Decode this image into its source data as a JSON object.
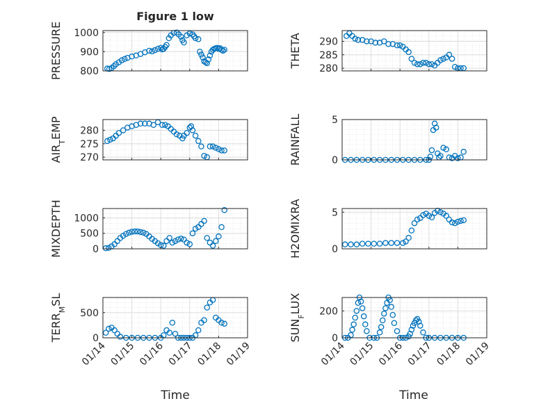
{
  "figure": {
    "title": "Figure 1 low",
    "xlabel": "Time",
    "x_ticks": [
      "01/14",
      "01/15",
      "01/16",
      "01/17",
      "01/18",
      "01/19"
    ],
    "marker_color": "#0072BD"
  },
  "chart_data": [
    {
      "type": "scatter",
      "ylabel": "PRESSURE",
      "ylim": [
        800,
        1010
      ],
      "yticks": [
        800,
        900,
        1000
      ],
      "grid": true,
      "x": [
        0.15,
        0.22,
        0.3,
        0.38,
        0.45,
        0.55,
        0.65,
        0.75,
        0.85,
        1.0,
        1.15,
        1.3,
        1.45,
        1.6,
        1.7,
        1.8,
        1.9,
        2.0,
        2.05,
        2.1,
        2.15,
        2.2,
        2.28,
        2.35,
        2.45,
        2.55,
        2.62,
        2.7,
        2.75,
        2.8,
        2.9,
        3.0,
        3.1,
        3.15,
        3.2,
        3.3,
        3.35,
        3.4,
        3.45,
        3.5,
        3.55,
        3.6,
        3.65,
        3.7,
        3.75,
        3.8,
        3.85,
        3.9,
        3.95,
        4.0,
        4.05,
        4.1,
        4.15,
        4.2
      ],
      "y": [
        812,
        810,
        815,
        825,
        835,
        845,
        855,
        862,
        868,
        875,
        880,
        888,
        897,
        905,
        902,
        908,
        915,
        920,
        912,
        915,
        925,
        935,
        970,
        985,
        998,
        1000,
        990,
        978,
        960,
        948,
        985,
        995,
        990,
        980,
        970,
        965,
        900,
        885,
        870,
        850,
        845,
        840,
        860,
        880,
        900,
        910,
        915,
        918,
        920,
        915,
        918,
        910,
        905,
        910
      ]
    },
    {
      "type": "scatter",
      "ylabel": "THETA",
      "ylim": [
        279,
        294
      ],
      "yticks": [
        280,
        285,
        290
      ],
      "grid": true,
      "x": [
        0.15,
        0.25,
        0.35,
        0.45,
        0.55,
        0.7,
        0.85,
        1.0,
        1.15,
        1.3,
        1.45,
        1.6,
        1.75,
        1.9,
        2.0,
        2.1,
        2.2,
        2.3,
        2.4,
        2.5,
        2.6,
        2.7,
        2.8,
        2.9,
        3.0,
        3.1,
        3.2,
        3.3,
        3.4,
        3.5,
        3.6,
        3.7,
        3.8,
        3.9,
        4.0,
        4.1,
        4.2
      ],
      "y": [
        292,
        293,
        292,
        291,
        290.5,
        290.5,
        290,
        290,
        289.5,
        289.5,
        290,
        289,
        289,
        288.5,
        288.5,
        288,
        287,
        286,
        283.5,
        282,
        281.5,
        281.5,
        282,
        282,
        281.5,
        281.5,
        281,
        282,
        283,
        283.5,
        284,
        285,
        283.5,
        280.5,
        280,
        280,
        280
      ]
    },
    {
      "type": "scatter",
      "ylabel": "AIR_T EMP",
      "ylim": [
        269,
        284
      ],
      "yticks": [
        270,
        275,
        280
      ],
      "grid": true,
      "x": [
        0.15,
        0.25,
        0.35,
        0.45,
        0.55,
        0.7,
        0.85,
        1.0,
        1.15,
        1.3,
        1.45,
        1.6,
        1.75,
        1.9,
        2.05,
        2.15,
        2.25,
        2.35,
        2.45,
        2.55,
        2.65,
        2.75,
        2.8,
        2.9,
        3.0,
        3.05,
        3.1,
        3.2,
        3.3,
        3.4,
        3.5,
        3.6,
        3.7,
        3.8,
        3.9,
        4.0,
        4.1,
        4.2
      ],
      "y": [
        276,
        276.5,
        277,
        278,
        279,
        280,
        281,
        281.5,
        282,
        282.5,
        282.5,
        282.5,
        282,
        283,
        282,
        282,
        281.5,
        280.5,
        279.5,
        278.5,
        278,
        277,
        278,
        279,
        281,
        281.5,
        280,
        278,
        276,
        274,
        270.5,
        270,
        274,
        274,
        273.5,
        273,
        272.5,
        272.5
      ]
    },
    {
      "type": "scatter",
      "ylabel": "RAINFALL",
      "ylim": [
        0,
        5
      ],
      "yticks": [
        0,
        5
      ],
      "grid": true,
      "x": [
        0.1,
        0.3,
        0.5,
        0.7,
        0.9,
        1.1,
        1.3,
        1.5,
        1.7,
        1.9,
        2.1,
        2.3,
        2.5,
        2.7,
        2.9,
        3.0,
        3.05,
        3.1,
        3.15,
        3.2,
        3.25,
        3.3,
        3.35,
        3.4,
        3.5,
        3.6,
        3.7,
        3.8,
        3.9,
        4.0,
        4.1,
        4.2
      ],
      "y": [
        0,
        0,
        0,
        0,
        0,
        0,
        0,
        0,
        0,
        0,
        0,
        0,
        0,
        0,
        0,
        0,
        0.4,
        1.2,
        3.7,
        4.5,
        4.0,
        0.8,
        0.3,
        0.5,
        1.5,
        1.3,
        0.3,
        0.2,
        0.5,
        0.2,
        0.3,
        1.0
      ]
    },
    {
      "type": "scatter",
      "ylabel": "MIXDEPTH",
      "ylim": [
        0,
        1300
      ],
      "yticks": [
        0,
        500,
        1000
      ],
      "grid": true,
      "x": [
        0.1,
        0.2,
        0.3,
        0.4,
        0.5,
        0.6,
        0.7,
        0.8,
        0.9,
        1.0,
        1.1,
        1.2,
        1.3,
        1.4,
        1.5,
        1.6,
        1.7,
        1.8,
        1.9,
        2.0,
        2.1,
        2.2,
        2.3,
        2.4,
        2.5,
        2.6,
        2.7,
        2.8,
        2.9,
        3.0,
        3.1,
        3.2,
        3.3,
        3.4,
        3.5,
        3.6,
        3.7,
        3.8,
        3.9,
        4.0,
        4.1,
        4.2
      ],
      "y": [
        20,
        30,
        80,
        150,
        250,
        350,
        420,
        480,
        520,
        550,
        560,
        560,
        540,
        520,
        480,
        400,
        320,
        250,
        180,
        120,
        100,
        250,
        350,
        200,
        250,
        300,
        330,
        300,
        200,
        150,
        500,
        650,
        700,
        800,
        900,
        350,
        200,
        100,
        250,
        400,
        700,
        1250
      ]
    },
    {
      "type": "scatter",
      "ylabel": "H2OMIXRA",
      "ylim": [
        0,
        5.5
      ],
      "yticks": [
        0,
        5
      ],
      "grid": true,
      "x": [
        0.1,
        0.3,
        0.5,
        0.7,
        0.9,
        1.1,
        1.3,
        1.5,
        1.7,
        1.9,
        2.1,
        2.2,
        2.3,
        2.4,
        2.5,
        2.6,
        2.7,
        2.8,
        2.9,
        3.0,
        3.1,
        3.2,
        3.3,
        3.4,
        3.5,
        3.6,
        3.7,
        3.8,
        3.9,
        4.0,
        4.1,
        4.2
      ],
      "y": [
        0.6,
        0.6,
        0.6,
        0.7,
        0.7,
        0.7,
        0.7,
        0.8,
        0.8,
        0.8,
        0.8,
        1.0,
        1.5,
        2.5,
        3.5,
        4.0,
        4.2,
        4.6,
        4.8,
        4.5,
        4.3,
        4.9,
        5.2,
        5.0,
        4.8,
        4.5,
        4.0,
        3.6,
        3.5,
        3.7,
        3.8,
        3.9
      ]
    },
    {
      "type": "scatter",
      "ylabel": "TERR_M SL",
      "ylim": [
        0,
        800
      ],
      "yticks": [
        0,
        500
      ],
      "grid": true,
      "x": [
        0.1,
        0.2,
        0.3,
        0.4,
        0.5,
        0.6,
        0.8,
        1.0,
        1.2,
        1.4,
        1.6,
        1.8,
        2.0,
        2.1,
        2.2,
        2.3,
        2.4,
        2.5,
        2.6,
        2.7,
        2.8,
        2.9,
        3.0,
        3.1,
        3.2,
        3.3,
        3.4,
        3.5,
        3.6,
        3.7,
        3.8,
        3.9,
        4.0,
        4.1,
        4.2
      ],
      "y": [
        100,
        180,
        200,
        150,
        80,
        20,
        0,
        0,
        0,
        0,
        0,
        0,
        0,
        50,
        150,
        100,
        300,
        80,
        0,
        0,
        0,
        0,
        0,
        0,
        50,
        150,
        300,
        350,
        600,
        700,
        750,
        400,
        350,
        300,
        280
      ]
    },
    {
      "type": "scatter",
      "ylabel": "SUN_F LUX",
      "ylim": [
        0,
        300
      ],
      "yticks": [
        0,
        200
      ],
      "grid": true,
      "x": [
        0.1,
        0.2,
        0.3,
        0.35,
        0.4,
        0.45,
        0.5,
        0.55,
        0.6,
        0.65,
        0.7,
        0.75,
        0.8,
        0.85,
        0.95,
        1.1,
        1.2,
        1.3,
        1.35,
        1.4,
        1.45,
        1.5,
        1.55,
        1.6,
        1.65,
        1.7,
        1.75,
        1.8,
        1.9,
        2.0,
        2.1,
        2.2,
        2.3,
        2.35,
        2.4,
        2.45,
        2.5,
        2.55,
        2.6,
        2.65,
        2.7,
        2.8,
        2.9,
        3.0,
        3.2,
        3.4,
        3.6,
        3.8,
        4.0,
        4.2
      ],
      "y": [
        0,
        0,
        20,
        60,
        100,
        150,
        200,
        260,
        300,
        270,
        220,
        160,
        100,
        50,
        0,
        0,
        0,
        40,
        80,
        130,
        180,
        220,
        260,
        300,
        280,
        230,
        170,
        110,
        50,
        0,
        0,
        0,
        10,
        30,
        60,
        90,
        110,
        130,
        140,
        120,
        90,
        40,
        0,
        0,
        0,
        0,
        0,
        0,
        0,
        0
      ]
    }
  ]
}
